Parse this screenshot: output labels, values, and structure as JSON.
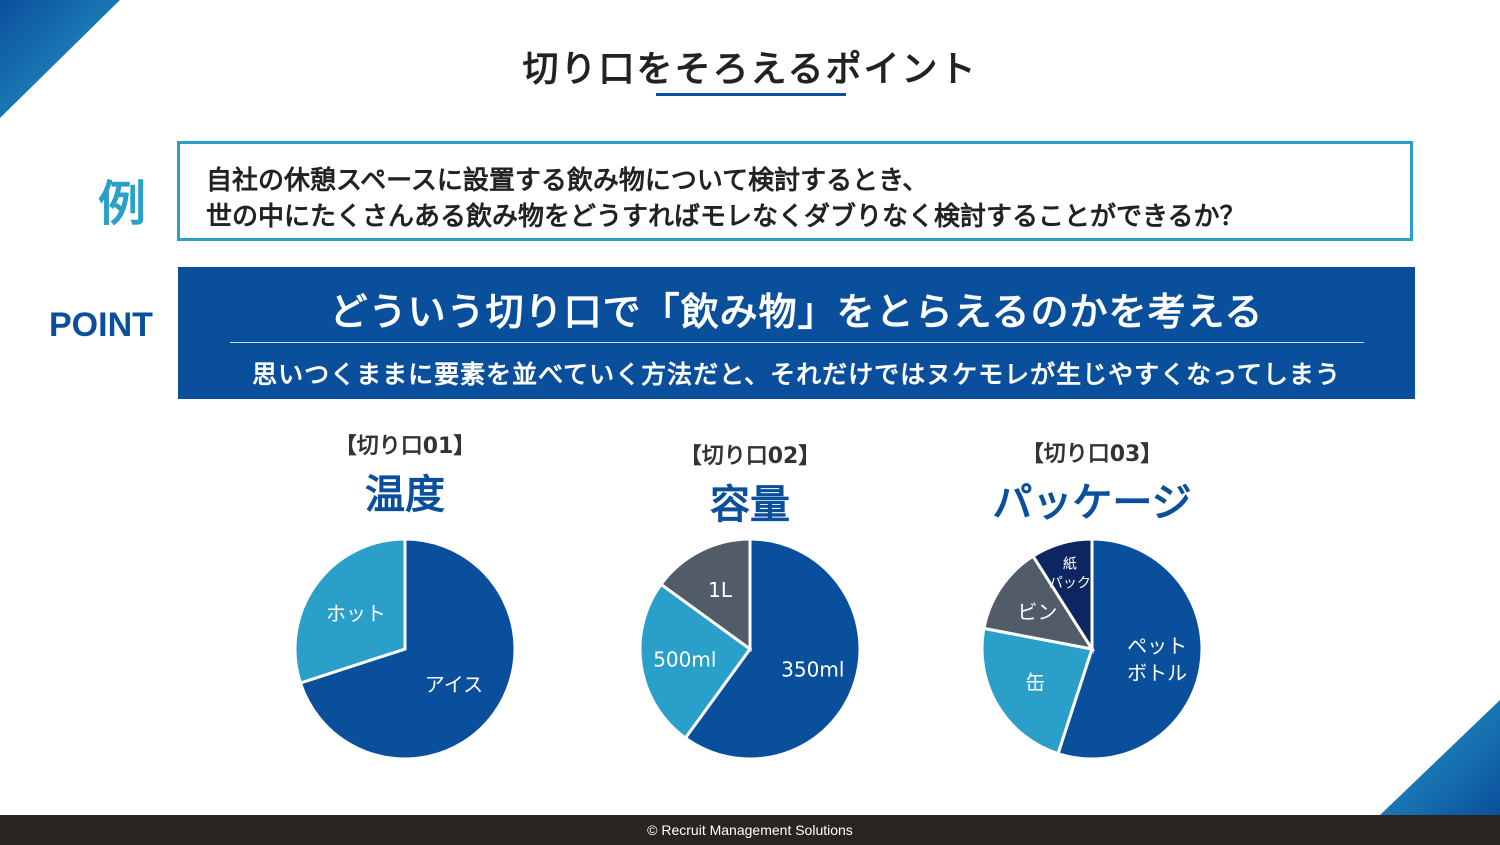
{
  "title": "切り口をそろえるポイント",
  "example": {
    "label": "例",
    "line1": "自社の休憩スペースに設置する飲み物について検討するとき、",
    "line2": "世の中にたくさんある飲み物をどうすればモレなくダブりなく検討することができるか？"
  },
  "point": {
    "label": "POINT",
    "main": "どういう切り口で「飲み物」をとらえるのかを考える",
    "sub": "思いつくままに要素を並べていく方法だと、それだけではヌケモレが生じやすくなってしまう"
  },
  "colors": {
    "primary": "#0a4f9c",
    "accent": "#2a9fc9",
    "gray": "#525c68",
    "navy": "#0d2661",
    "footer_bg": "#2a2421"
  },
  "chart_data": [
    {
      "type": "pie",
      "tag": "【切り口01】",
      "title": "温度",
      "slices": [
        {
          "label": "アイス",
          "value": 70,
          "color": "#0a4f9c"
        },
        {
          "label": "ホット",
          "value": 30,
          "color": "#2a9fc9"
        }
      ]
    },
    {
      "type": "pie",
      "tag": "【切り口02】",
      "title": "容量",
      "slices": [
        {
          "label": "350ml",
          "value": 60,
          "color": "#0a4f9c"
        },
        {
          "label": "500ml",
          "value": 25,
          "color": "#2a9fc9"
        },
        {
          "label": "1L",
          "value": 15,
          "color": "#525c68"
        }
      ]
    },
    {
      "type": "pie",
      "tag": "【切り口03】",
      "title": "パッケージ",
      "slices": [
        {
          "label": "ペット\nボトル",
          "value": 55,
          "color": "#0a4f9c"
        },
        {
          "label": "缶",
          "value": 23,
          "color": "#2a9fc9"
        },
        {
          "label": "ビン",
          "value": 13,
          "color": "#525c68"
        },
        {
          "label": "紙\nパック",
          "value": 9,
          "color": "#0d2661"
        }
      ]
    }
  ],
  "footer": "© Recruit Management Solutions"
}
